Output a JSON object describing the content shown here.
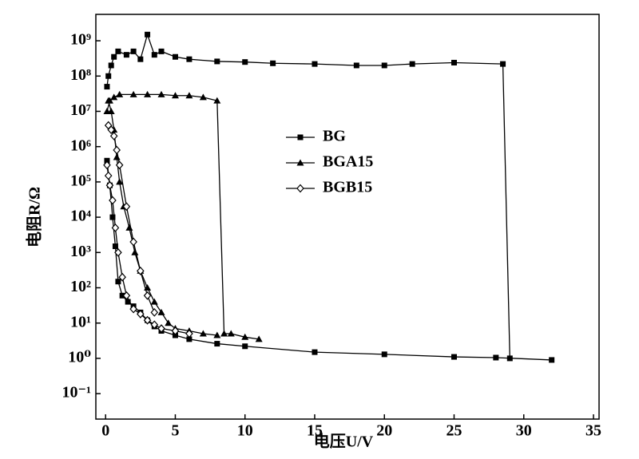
{
  "chart_data": {
    "type": "line",
    "log_y": true,
    "xlabel": "电压U/V",
    "ylabel": "电阻R/Ω",
    "xlim": [
      -0.7,
      35.4
    ],
    "xticks": [
      0,
      5,
      10,
      15,
      20,
      25,
      30,
      35
    ],
    "ylim": [
      0.019,
      5600000000
    ],
    "yticks": [
      {
        "value": 0.1,
        "label": "10⁻¹"
      },
      {
        "value": 1,
        "label": "10⁰"
      },
      {
        "value": 10,
        "label": "10¹"
      },
      {
        "value": 100,
        "label": "10²"
      },
      {
        "value": 1000,
        "label": "10³"
      },
      {
        "value": 10000,
        "label": "10⁴"
      },
      {
        "value": 100000,
        "label": "10⁵"
      },
      {
        "value": 1000000,
        "label": "10⁶"
      },
      {
        "value": 10000000,
        "label": "10⁷"
      },
      {
        "value": 100000000,
        "label": "10⁸"
      },
      {
        "value": 1000000000,
        "label": "10⁹"
      }
    ],
    "legend": "center",
    "series": [
      {
        "name": "BG",
        "color": "#000000",
        "marker": "square",
        "x": [
          0.1,
          0.3,
          0.5,
          0.7,
          0.9,
          1.2,
          1.6,
          2,
          2.5,
          3,
          3.5,
          4,
          5,
          6,
          8,
          10,
          15,
          20,
          25,
          28,
          32,
          null,
          0.1,
          0.2,
          0.4,
          0.6,
          0.9,
          1.5,
          2,
          2.5,
          3,
          3.5,
          4,
          5,
          6,
          8,
          10,
          12,
          15,
          18,
          20,
          22,
          25,
          28.5,
          29
        ],
        "values": [
          400000,
          80000,
          10000,
          1500,
          150,
          60,
          40,
          30,
          20,
          12,
          8,
          6,
          4.5,
          3.5,
          2.6,
          2.2,
          1.5,
          1.3,
          1.1,
          1.05,
          0.9,
          null,
          50000000,
          100000000,
          200000000,
          350000000,
          500000000,
          400000000,
          500000000,
          300000000,
          1500000000,
          400000000,
          500000000,
          350000000,
          300000000,
          260000000,
          250000000,
          230000000,
          220000000,
          200000000,
          200000000,
          220000000,
          240000000,
          220000000,
          1
        ]
      },
      {
        "name": "BGA15",
        "color": "#000000",
        "marker": "triangle",
        "x": [
          0.2,
          0.4,
          0.6,
          0.8,
          1,
          1.3,
          1.7,
          2.1,
          2.5,
          3,
          3.5,
          4,
          4.5,
          5,
          6,
          7,
          8,
          null,
          0.1,
          0.3,
          0.6,
          1,
          2,
          3,
          4,
          5,
          6,
          7,
          8,
          8.5,
          9,
          10,
          11
        ],
        "values": [
          20000000,
          10000000,
          3000000,
          500000,
          100000,
          20000,
          5000,
          1000,
          300,
          100,
          40,
          20,
          10,
          7,
          6,
          5,
          4.5,
          null,
          10000000,
          20000000,
          25000000,
          30000000,
          30000000,
          30000000,
          30000000,
          28000000,
          28000000,
          25000000,
          20000000,
          5,
          5,
          4,
          3.5
        ]
      },
      {
        "name": "BGB15",
        "color": "#000000",
        "marker": "diamond",
        "x": [
          0.1,
          0.2,
          0.3,
          0.5,
          0.7,
          0.9,
          1.2,
          1.5,
          2,
          2.5,
          3,
          3.5,
          4,
          5,
          6,
          null,
          0.2,
          0.4,
          0.6,
          0.8,
          1,
          1.5,
          2,
          2.5,
          3,
          3.5
        ],
        "values": [
          300000,
          150000,
          80000,
          30000,
          5000,
          1000,
          200,
          60,
          25,
          18,
          12,
          9,
          7,
          6,
          5,
          null,
          4000000,
          3000000,
          2000000,
          800000,
          300000,
          20000,
          2000,
          300,
          60,
          20
        ]
      }
    ]
  }
}
